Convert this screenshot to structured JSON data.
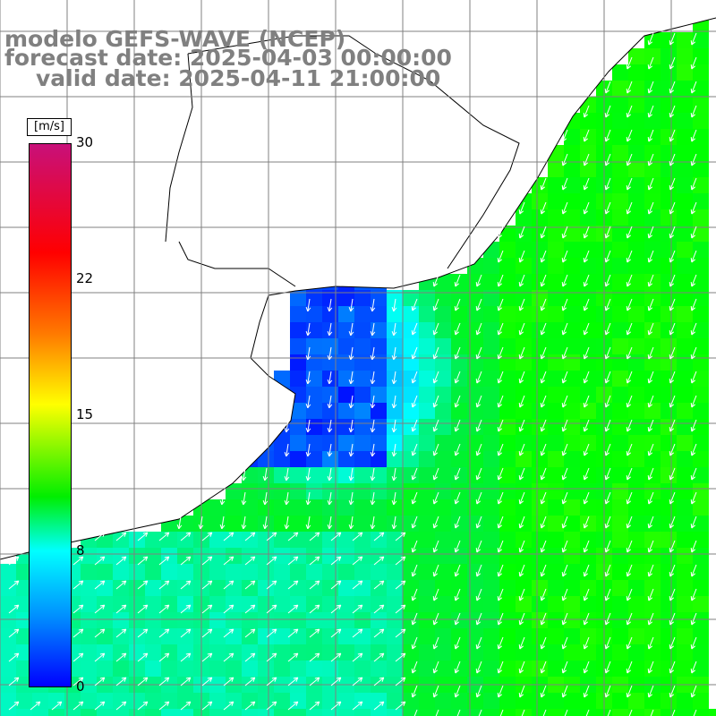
{
  "header": {
    "model": "modelo GEFS-WAVE (NCEP)",
    "forecast": "forecast date: 2025-04-03 00:00:00",
    "valid": "valid date: 2025-04-11 21:00:00"
  },
  "legend": {
    "units": "[m/s]",
    "ticks": [
      "30",
      "22",
      "15",
      "8",
      "0"
    ],
    "min": 0,
    "max": 30,
    "colors": [
      "#0000ff",
      "#0090ff",
      "#00ffff",
      "#00ee00",
      "#ffff00",
      "#ff7a00",
      "#ff0000",
      "#c8107a"
    ]
  },
  "map": {
    "land_color": "#ffffff",
    "coastline_color": "#000000",
    "grid_color": "#808080",
    "arrow_color": "#ffffff"
  }
}
